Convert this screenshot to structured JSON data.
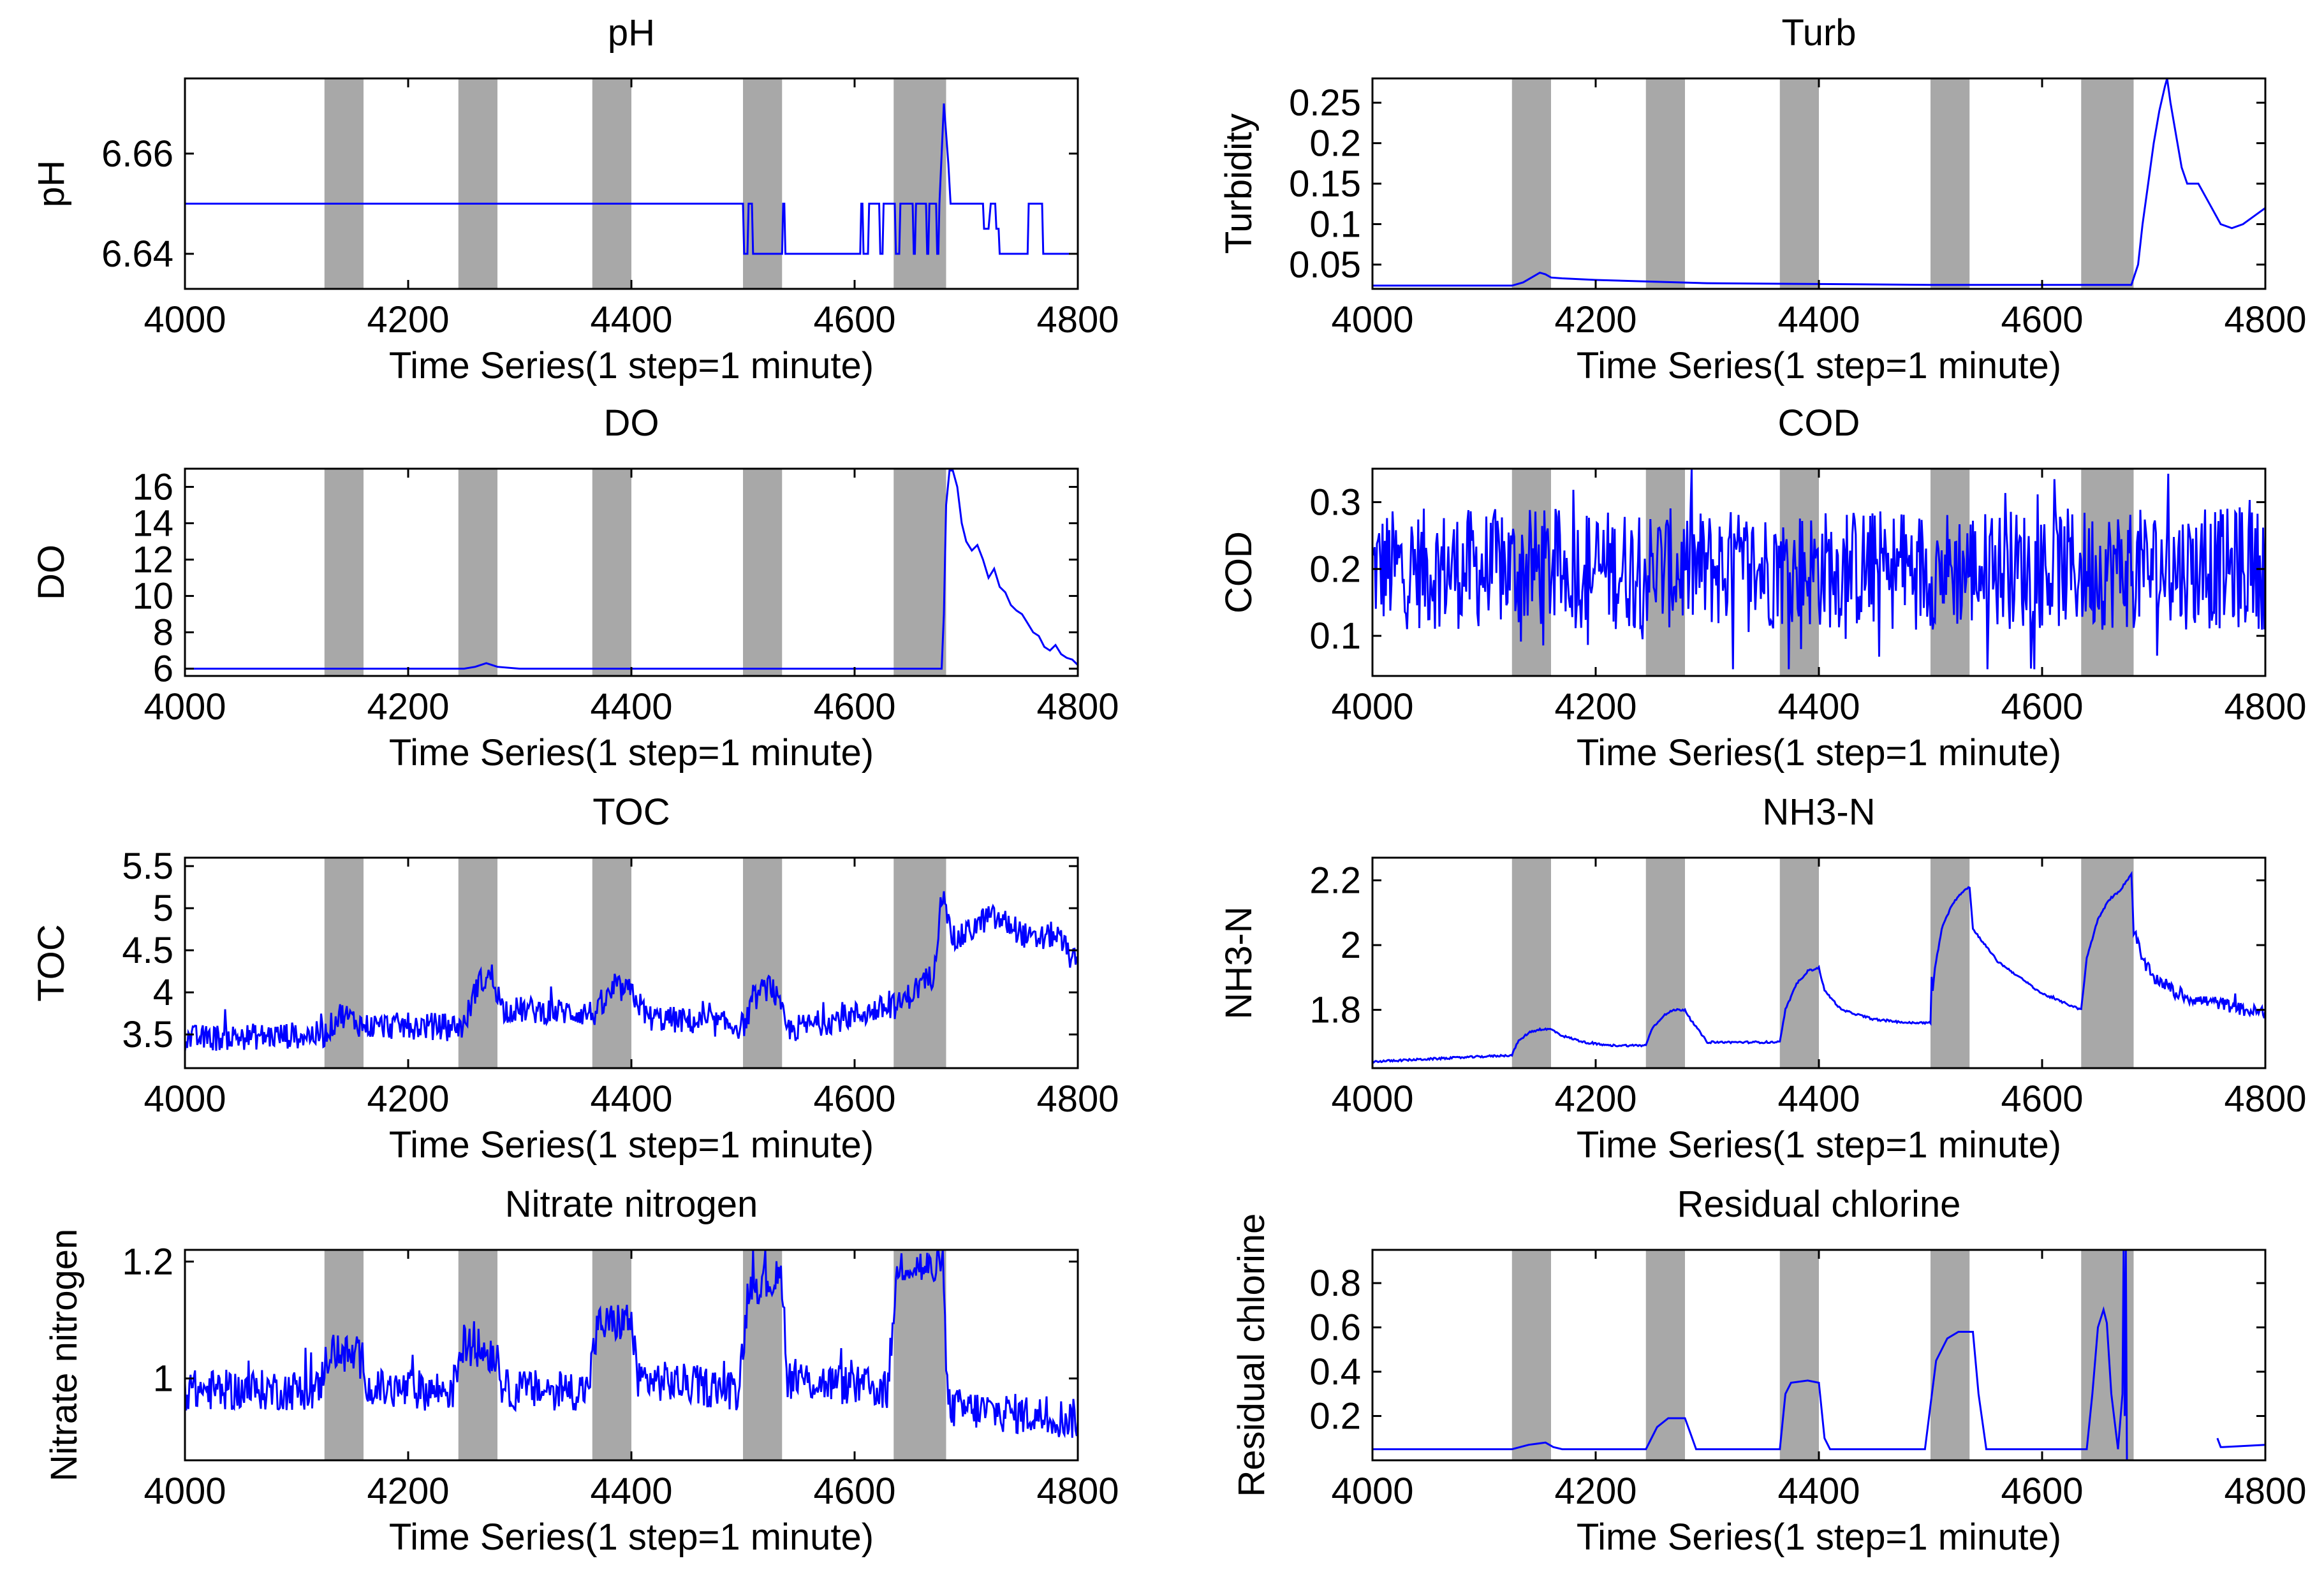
{
  "x_axis": {
    "label": "Time Series(1 step=1 minute)",
    "range": [
      4000,
      4800
    ],
    "ticks": [
      4000,
      4200,
      4400,
      4600,
      4800
    ],
    "tick_labels": [
      "4000",
      "4200",
      "4400",
      "4600",
      "4800"
    ]
  },
  "shaded_intervals": [
    [
      4125,
      4160
    ],
    [
      4245,
      4280
    ],
    [
      4365,
      4400
    ],
    [
      4500,
      4535
    ],
    [
      4635,
      4682
    ]
  ],
  "colors": {
    "series": "#0000ff",
    "shade": "#a8a8a8",
    "axes": "#000000",
    "background": "#ffffff"
  },
  "chart_data": [
    {
      "type": "line",
      "id": "ph",
      "title": "pH",
      "xlabel": "Time Series(1 step=1 minute)",
      "ylabel": "pH",
      "xlim": [
        4000,
        4800
      ],
      "ylim": [
        6.633,
        6.675
      ],
      "yticks": [
        6.64,
        6.66
      ],
      "ytick_labels": [
        "6.64",
        "6.66"
      ],
      "series": [
        {
          "name": "pH",
          "x": [
            4000,
            4500,
            4501,
            4504,
            4505,
            4508,
            4509,
            4535,
            4536,
            4537,
            4538,
            4605,
            4606,
            4607,
            4608,
            4612,
            4613,
            4622,
            4623,
            4625,
            4626,
            4636,
            4637,
            4640,
            4641,
            4652,
            4653,
            4654,
            4655,
            4664,
            4665,
            4666,
            4667,
            4673,
            4674,
            4675,
            4676,
            4678,
            4680,
            4684,
            4686,
            4690,
            4700,
            4715,
            4716,
            4720,
            4722,
            4726,
            4727,
            4729,
            4730,
            4755,
            4756,
            4768,
            4769,
            4800
          ],
          "y": [
            6.65,
            6.65,
            6.64,
            6.64,
            6.65,
            6.65,
            6.64,
            6.64,
            6.65,
            6.65,
            6.64,
            6.64,
            6.65,
            6.65,
            6.64,
            6.64,
            6.65,
            6.65,
            6.64,
            6.64,
            6.65,
            6.65,
            6.64,
            6.64,
            6.65,
            6.65,
            6.64,
            6.64,
            6.65,
            6.65,
            6.64,
            6.64,
            6.65,
            6.65,
            6.64,
            6.64,
            6.65,
            6.66,
            6.67,
            6.658,
            6.65,
            6.65,
            6.65,
            6.65,
            6.645,
            6.645,
            6.65,
            6.65,
            6.645,
            6.645,
            6.64,
            6.64,
            6.65,
            6.65,
            6.64,
            6.64
          ]
        }
      ]
    },
    {
      "type": "line",
      "id": "turb",
      "title": "Turb",
      "xlabel": "Time Series(1 step=1 minute)",
      "ylabel": "Turbidity",
      "xlim": [
        4000,
        4800
      ],
      "ylim": [
        0.02,
        0.28
      ],
      "yticks": [
        0.05,
        0.1,
        0.15,
        0.2,
        0.25
      ],
      "ytick_labels": [
        "0.05",
        "0.1",
        "0.15",
        "0.2",
        "0.25"
      ],
      "series": [
        {
          "name": "Turbidity",
          "x": [
            4000,
            4125,
            4135,
            4145,
            4150,
            4155,
            4160,
            4170,
            4200,
            4250,
            4300,
            4400,
            4500,
            4600,
            4680,
            4686,
            4690,
            4695,
            4700,
            4705,
            4710,
            4712,
            4715,
            4720,
            4725,
            4730,
            4740,
            4750,
            4760,
            4770,
            4780,
            4790,
            4800
          ],
          "y": [
            0.024,
            0.024,
            0.028,
            0.036,
            0.04,
            0.038,
            0.034,
            0.033,
            0.031,
            0.029,
            0.027,
            0.026,
            0.025,
            0.025,
            0.025,
            0.05,
            0.1,
            0.15,
            0.2,
            0.24,
            0.27,
            0.28,
            0.25,
            0.21,
            0.17,
            0.15,
            0.15,
            0.125,
            0.1,
            0.095,
            0.1,
            0.11,
            0.12
          ]
        }
      ]
    },
    {
      "type": "line",
      "id": "do",
      "title": "DO",
      "xlabel": "Time Series(1 step=1 minute)",
      "ylabel": "DO",
      "xlim": [
        4000,
        4800
      ],
      "ylim": [
        5.6,
        17
      ],
      "yticks": [
        6,
        8,
        10,
        12,
        14,
        16
      ],
      "ytick_labels": [
        "6",
        "8",
        "10",
        "12",
        "14",
        "16"
      ],
      "series": [
        {
          "name": "DO",
          "x": [
            4000,
            4250,
            4260,
            4270,
            4280,
            4300,
            4500,
            4678,
            4680,
            4682,
            4685,
            4688,
            4692,
            4696,
            4700,
            4705,
            4710,
            4715,
            4720,
            4725,
            4730,
            4735,
            4740,
            4745,
            4750,
            4755,
            4760,
            4765,
            4770,
            4775,
            4780,
            4785,
            4790,
            4795,
            4800
          ],
          "y": [
            6.0,
            6.0,
            6.1,
            6.3,
            6.1,
            6.0,
            6.0,
            6.0,
            9,
            15,
            16.9,
            16.9,
            16,
            14,
            13,
            12.5,
            12.8,
            12,
            11,
            11.5,
            10.5,
            10.2,
            9.5,
            9.2,
            9,
            8.5,
            8,
            7.8,
            7.2,
            7,
            7.3,
            6.8,
            6.6,
            6.5,
            6.2
          ]
        }
      ]
    },
    {
      "type": "line",
      "id": "cod",
      "title": "COD",
      "xlabel": "Time Series(1 step=1 minute)",
      "ylabel": "COD",
      "xlim": [
        4000,
        4800
      ],
      "ylim": [
        0.04,
        0.35
      ],
      "yticks": [
        0.1,
        0.2,
        0.3
      ],
      "ytick_labels": [
        "0.1",
        "0.2",
        "0.3"
      ],
      "series": [
        {
          "name": "COD",
          "noise": {
            "base": 0.2,
            "amplitude": 0.13,
            "min": 0.05,
            "max": 0.35
          }
        }
      ]
    },
    {
      "type": "line",
      "id": "toc",
      "title": "TOC",
      "xlabel": "Time Series(1 step=1 minute)",
      "ylabel": "TOC",
      "xlim": [
        4000,
        4800
      ],
      "ylim": [
        3.1,
        5.6
      ],
      "yticks": [
        3.5,
        4,
        4.5,
        5,
        5.5
      ],
      "ytick_labels": [
        "3.5",
        "4",
        "4.5",
        "5",
        "5.5"
      ],
      "series": [
        {
          "name": "TOC",
          "x": [
            4000,
            4125,
            4140,
            4160,
            4250,
            4262,
            4275,
            4285,
            4370,
            4385,
            4400,
            4415,
            4500,
            4512,
            4525,
            4540,
            4640,
            4660,
            4670,
            4676,
            4680,
            4684,
            4690,
            4700,
            4720,
            4740,
            4760,
            4780,
            4800
          ],
          "y": [
            3.45,
            3.5,
            3.75,
            3.6,
            3.6,
            4.1,
            4.2,
            3.8,
            3.75,
            4.05,
            4.0,
            3.7,
            3.6,
            3.95,
            4.1,
            3.55,
            3.85,
            4.1,
            4.2,
            4.9,
            5.3,
            4.8,
            4.6,
            4.7,
            4.9,
            4.8,
            4.6,
            4.7,
            4.3
          ],
          "noise_amplitude": 0.16
        }
      ]
    },
    {
      "type": "line",
      "id": "nh3n",
      "title": "NH3-N",
      "xlabel": "Time Series(1 step=1 minute)",
      "ylabel": "NH3-N",
      "xlim": [
        4000,
        4800
      ],
      "ylim": [
        1.62,
        2.27
      ],
      "yticks": [
        1.8,
        2,
        2.2
      ],
      "ytick_labels": [
        "1.8",
        "2",
        "2.2"
      ],
      "series": [
        {
          "name": "NH3-N",
          "x": [
            4000,
            4125,
            4130,
            4140,
            4150,
            4160,
            4170,
            4190,
            4210,
            4245,
            4250,
            4260,
            4270,
            4280,
            4285,
            4300,
            4365,
            4370,
            4380,
            4390,
            4400,
            4405,
            4420,
            4450,
            4480,
            4500,
            4501,
            4502,
            4504,
            4510,
            4520,
            4530,
            4535,
            4538,
            4560,
            4600,
            4635,
            4640,
            4650,
            4660,
            4670,
            4680,
            4682,
            4690,
            4700,
            4710,
            4720,
            4740,
            4760,
            4780,
            4800
          ],
          "y": [
            1.64,
            1.66,
            1.7,
            1.73,
            1.74,
            1.74,
            1.72,
            1.7,
            1.69,
            1.69,
            1.74,
            1.78,
            1.8,
            1.8,
            1.77,
            1.7,
            1.7,
            1.8,
            1.88,
            1.92,
            1.93,
            1.86,
            1.8,
            1.77,
            1.76,
            1.76,
            1.9,
            1.86,
            1.93,
            2.05,
            2.13,
            2.17,
            2.18,
            2.05,
            1.95,
            1.85,
            1.8,
            1.96,
            2.08,
            2.14,
            2.17,
            2.22,
            2.05,
            1.95,
            1.9,
            1.88,
            1.85,
            1.83,
            1.82,
            1.8,
            1.79
          ],
          "noise_amplitude": 0.02,
          "noise_after": 4682
        }
      ]
    },
    {
      "type": "line",
      "id": "nitrate",
      "title": "Nitrate nitrogen",
      "xlabel": "Time Series(1 step=1 minute)",
      "ylabel": "Nitrate nitrogen",
      "xlim": [
        4000,
        4800
      ],
      "ylim": [
        0.86,
        1.22
      ],
      "yticks": [
        1,
        1.2
      ],
      "ytick_labels": [
        "1",
        "1.2"
      ],
      "series": [
        {
          "name": "Nitrate nitrogen",
          "x": [
            4000,
            4120,
            4125,
            4130,
            4160,
            4165,
            4240,
            4245,
            4250,
            4280,
            4285,
            4360,
            4365,
            4370,
            4400,
            4405,
            4495,
            4500,
            4505,
            4535,
            4540,
            4630,
            4635,
            4640,
            4680,
            4682,
            4685,
            4800
          ],
          "y": [
            0.98,
            0.98,
            1.02,
            1.05,
            1.03,
            0.98,
            0.98,
            1.03,
            1.06,
            1.04,
            0.98,
            0.98,
            1.03,
            1.09,
            1.1,
            1.0,
            0.98,
            1.05,
            1.16,
            1.17,
            1.0,
            0.98,
            1.12,
            1.2,
            1.18,
            1.0,
            0.95,
            0.93
          ],
          "noise_amplitude": 0.035
        }
      ]
    },
    {
      "type": "line",
      "id": "residual-chlorine",
      "title": "Residual chlorine",
      "xlabel": "Time Series(1 step=1 minute)",
      "ylabel": "Residual chlorine",
      "xlim": [
        4000,
        4800
      ],
      "ylim": [
        0,
        0.95
      ],
      "yticks": [
        0.2,
        0.4,
        0.6,
        0.8
      ],
      "ytick_labels": [
        "0.2",
        "0.4",
        "0.6",
        "0.8"
      ],
      "series": [
        {
          "name": "Residual chlorine",
          "x": [
            4000,
            4125,
            4140,
            4155,
            4162,
            4170,
            4245,
            4255,
            4265,
            4280,
            4285,
            4290,
            4365,
            4370,
            4375,
            4390,
            4400,
            4405,
            4410,
            4495,
            4505,
            4515,
            4525,
            4538,
            4543,
            4550,
            4640,
            4645,
            4650,
            4655,
            4658,
            4662,
            4668,
            4672,
            4673,
            4674,
            4675,
            4676,
            4677,
            4678,
            4756,
            4757,
            4760,
            4762,
            4800
          ],
          "y": [
            0.05,
            0.05,
            0.07,
            0.08,
            0.06,
            0.05,
            0.05,
            0.15,
            0.19,
            0.19,
            0.12,
            0.05,
            0.05,
            0.3,
            0.35,
            0.36,
            0.35,
            0.1,
            0.05,
            0.05,
            0.45,
            0.55,
            0.58,
            0.58,
            0.3,
            0.05,
            0.05,
            0.3,
            0.6,
            0.68,
            0.62,
            0.3,
            0.05,
            0.3,
            0.95,
            0.2,
            0.95,
            0.0,
            null,
            null,
            null,
            0.1,
            0.06,
            0.06,
            0.07
          ]
        }
      ]
    }
  ]
}
